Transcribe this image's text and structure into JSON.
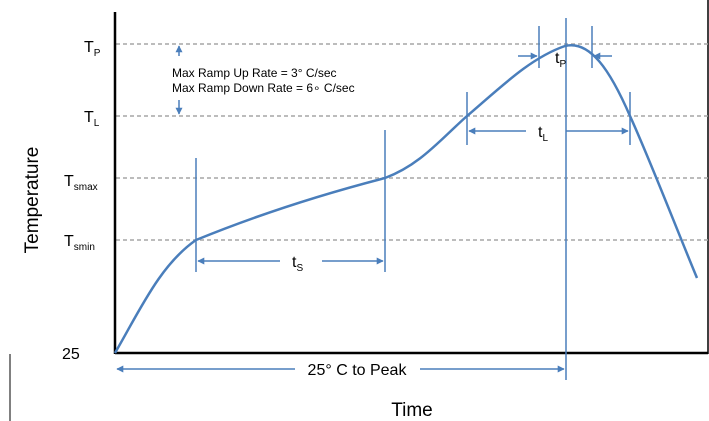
{
  "axes": {
    "y_title": "Temperature",
    "x_title": "Time",
    "y_origin_label": "25"
  },
  "levels": {
    "tp": {
      "main": "T",
      "sub": "P"
    },
    "tl": {
      "main": "T",
      "sub": "L"
    },
    "tsmax": {
      "main": "T",
      "sub": "smax"
    },
    "tsmin": {
      "main": "T",
      "sub": "smin"
    }
  },
  "annotations": {
    "ramp_up": "Max Ramp Up Rate = 3° C/sec",
    "ramp_down": "Max Ramp Down Rate = 6∘ C/sec",
    "to_peak": "25° C to Peak"
  },
  "durations": {
    "ts": {
      "main": "t",
      "sub": "S"
    },
    "tl": {
      "main": "t",
      "sub": "L"
    },
    "tp": {
      "main": "t",
      "sub": "P"
    }
  },
  "colors": {
    "curve": "#4a7ebb",
    "axis": "#000000",
    "gridline": "#a6a6a6",
    "text": "#000000"
  }
}
